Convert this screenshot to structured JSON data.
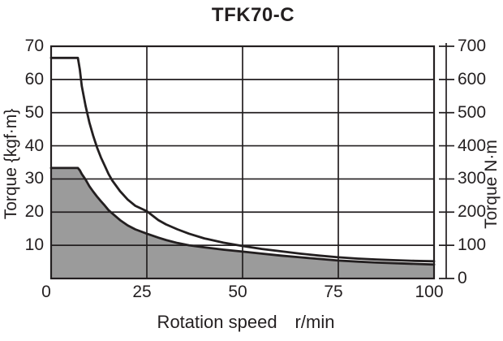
{
  "title": "TFK70-C",
  "colors": {
    "line": "#231f20",
    "grid": "#231f20",
    "area_fill": "#9b9b9b",
    "background": "#ffffff",
    "text": "#231f20"
  },
  "chart_data": {
    "type": "line",
    "title": "TFK70-C",
    "xlabel": "Rotation speed",
    "x_unit": "r/min",
    "ylabel_left": "Torque {kgf·m}",
    "ylabel_right": "Torque N·m",
    "xlim": [
      0,
      100
    ],
    "ylim_left": [
      0,
      70
    ],
    "ylim_right": [
      0,
      700
    ],
    "x_ticks": [
      0,
      25,
      50,
      75,
      100
    ],
    "y_ticks_left": [
      70,
      60,
      50,
      40,
      30,
      20,
      10
    ],
    "y_ticks_right": [
      700,
      600,
      500,
      400,
      300,
      200,
      100,
      0
    ],
    "grid": true,
    "legend": "none",
    "series": [
      {
        "name": "curve-upper",
        "fill": false,
        "points_kgfm": [
          [
            0,
            66.5
          ],
          [
            7,
            66.5
          ],
          [
            7.5,
            63
          ],
          [
            8,
            58
          ],
          [
            9,
            52
          ],
          [
            10,
            47
          ],
          [
            11,
            43
          ],
          [
            12,
            39.5
          ],
          [
            13,
            36.5
          ],
          [
            14,
            34
          ],
          [
            15,
            31.5
          ],
          [
            16,
            29.5
          ],
          [
            18,
            26.3
          ],
          [
            20,
            23.8
          ],
          [
            22,
            21.9
          ],
          [
            25,
            20.3
          ],
          [
            28,
            17.6
          ],
          [
            30,
            16.3
          ],
          [
            33,
            14.8
          ],
          [
            36,
            13.5
          ],
          [
            40,
            12.1
          ],
          [
            45,
            10.8
          ],
          [
            50,
            9.8
          ],
          [
            55,
            8.9
          ],
          [
            60,
            8.2
          ],
          [
            65,
            7.5
          ],
          [
            70,
            6.9
          ],
          [
            75,
            6.4
          ],
          [
            80,
            6.0
          ],
          [
            85,
            5.7
          ],
          [
            90,
            5.5
          ],
          [
            95,
            5.3
          ],
          [
            100,
            5.2
          ]
        ]
      },
      {
        "name": "curve-lower-filled",
        "fill": true,
        "points_kgfm": [
          [
            0,
            33.3
          ],
          [
            7,
            33.3
          ],
          [
            7.5,
            32.6
          ],
          [
            8,
            31.5
          ],
          [
            9,
            29.8
          ],
          [
            10,
            27.8
          ],
          [
            11,
            26.2
          ],
          [
            12,
            24.7
          ],
          [
            13,
            23.3
          ],
          [
            14,
            22
          ],
          [
            15,
            20.6
          ],
          [
            16,
            19.6
          ],
          [
            18,
            17.6
          ],
          [
            20,
            16
          ],
          [
            22,
            14.8
          ],
          [
            25,
            13.5
          ],
          [
            28,
            12.3
          ],
          [
            30,
            11.6
          ],
          [
            33,
            10.7
          ],
          [
            36,
            10
          ],
          [
            40,
            9.4
          ],
          [
            45,
            8.7
          ],
          [
            50,
            8.1
          ],
          [
            55,
            7.5
          ],
          [
            60,
            6.9
          ],
          [
            65,
            6.4
          ],
          [
            70,
            5.9
          ],
          [
            75,
            5.4
          ],
          [
            80,
            5.1
          ],
          [
            85,
            4.8
          ],
          [
            90,
            4.6
          ],
          [
            95,
            4.4
          ],
          [
            100,
            4.2
          ]
        ]
      }
    ]
  }
}
